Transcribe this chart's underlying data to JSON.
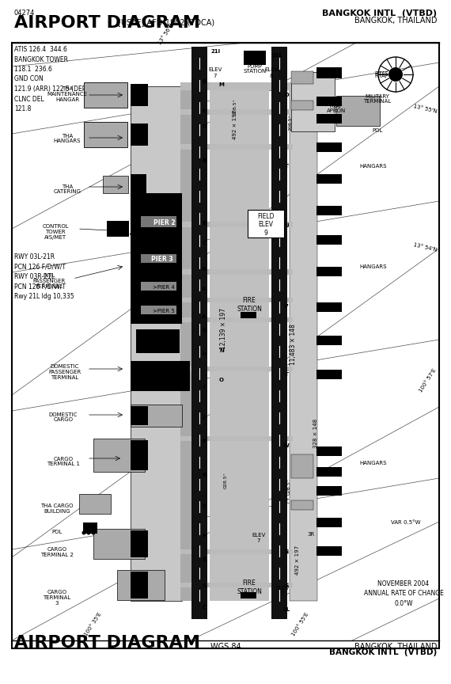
{
  "title_top_left": "AIRPORT DIAGRAM",
  "subtitle_top": "[USAF] AFD-1902 (TDCA)",
  "title_top_right": "BANGKOK INTL  (VTBD)",
  "subtitle_top_right": "BANGKOK, THAILAND",
  "small_top_left": "04274",
  "title_bottom_left": "AIRPORT DIAGRAM",
  "subtitle_bottom_center": "WGS 84",
  "subtitle_bottom_right1": "BANGKOK, THAILAND",
  "subtitle_bottom_right2": "BANGKOK INTL  (VTBD)",
  "radio_info": "ATIS 126.4  344.6\nBANGKOK TOWER\n118.1  236.6\nGND CON\n121.9 (ARR) 122.5 (DEP) 257.8\nCLNC DEL\n121.8",
  "rwy_info": "RWY 03L-21R\nPCN 126 F/D/W/T\nRWY 03R-21L\nPCN 126 F/D/W/T\nRwy 21L ldg 10,335",
  "nov_info": "NOVEMBER 2004\nANNUAL RATE OF CHANGE\n0.0°W",
  "bg_color": "#ffffff",
  "runway_color": "#111111",
  "taxiway_color": "#bbbbbb",
  "apron_color": "#cccccc",
  "building_dark": "#000000",
  "building_mid": "#888888",
  "border_color": "#000000"
}
